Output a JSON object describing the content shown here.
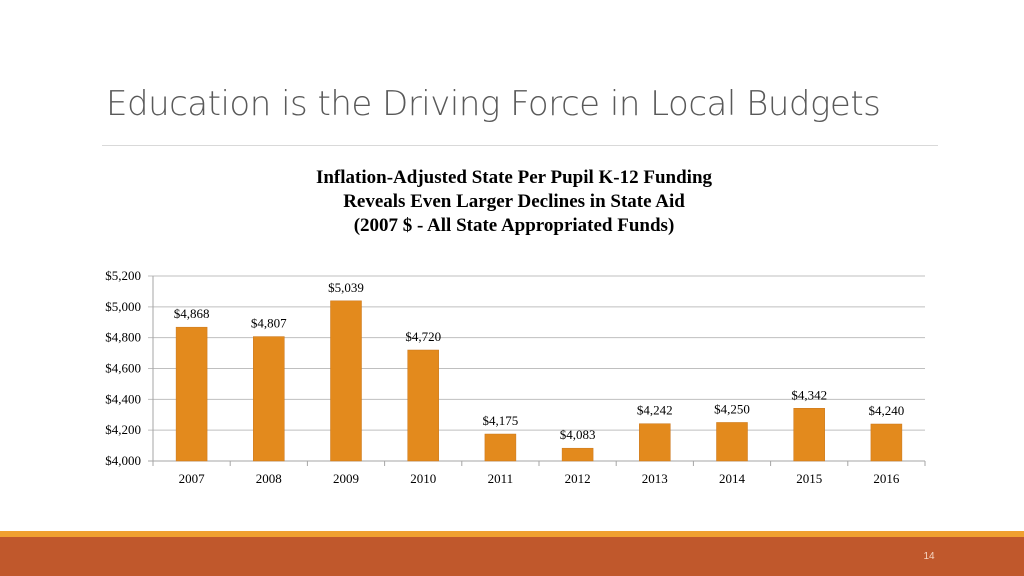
{
  "slide": {
    "title": "Education is the Driving Force in Local Budgets",
    "page_number": "14"
  },
  "colors": {
    "bar": "#e38a1d",
    "bar_stroke": "#c9761a",
    "footer_band": "#c0582c",
    "footer_line": "#f0a030",
    "grid": "#bfbfbf"
  },
  "chart_data": {
    "type": "bar",
    "title_lines": [
      "Inflation-Adjusted State Per Pupil K-12 Funding",
      "Reveals Even Larger Declines in State Aid",
      "(2007 $ - All State Appropriated Funds)"
    ],
    "categories": [
      "2007",
      "2008",
      "2009",
      "2010",
      "2011",
      "2012",
      "2013",
      "2014",
      "2015",
      "2016"
    ],
    "values": [
      4868,
      4807,
      5039,
      4720,
      4175,
      4083,
      4242,
      4250,
      4342,
      4240
    ],
    "data_labels": [
      "$4,868",
      "$4,807",
      "$5,039",
      "$4,720",
      "$4,175",
      "$4,083",
      "$4,242",
      "$4,250",
      "$4,342",
      "$4,240"
    ],
    "ylim": [
      4000,
      5200
    ],
    "y_ticks": [
      4000,
      4200,
      4400,
      4600,
      4800,
      5000,
      5200
    ],
    "y_tick_labels": [
      "$4,000",
      "$4,200",
      "$4,400",
      "$4,600",
      "$4,800",
      "$5,000",
      "$5,200"
    ],
    "xlabel": "",
    "ylabel": "",
    "grid": true,
    "legend": "none"
  }
}
